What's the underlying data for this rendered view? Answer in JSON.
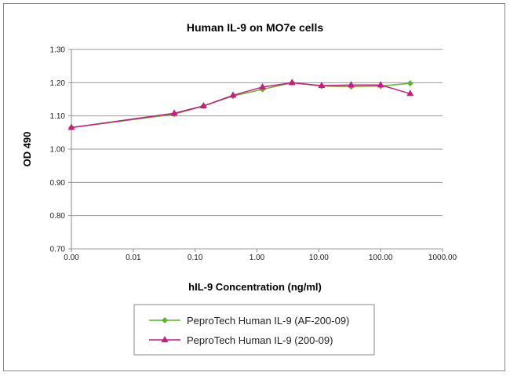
{
  "chart_data": {
    "type": "line",
    "title": "Human IL-9 on MO7e cells",
    "xlabel": "hIL-9 Concentration (ng/ml)",
    "ylabel": "OD 490",
    "x_scale": "log",
    "xlim": [
      0.001,
      1000
    ],
    "ylim": [
      0.7,
      1.3
    ],
    "x_tick_labels": [
      "0.00",
      "0.01",
      "0.10",
      "1.00",
      "10.00",
      "100.00",
      "1000.00"
    ],
    "y_tick_labels": [
      "0.70",
      "0.80",
      "0.90",
      "1.00",
      "1.10",
      "1.20",
      "1.30"
    ],
    "grid": "horizontal",
    "legend_position": "bottom",
    "x": [
      0.001,
      0.046,
      0.137,
      0.41,
      1.23,
      3.7,
      11.1,
      33.3,
      100,
      300
    ],
    "series": [
      {
        "name": "PeproTech Human IL-9 (AF-200-09)",
        "color": "#5bb531",
        "marker": "diamond",
        "values": [
          1.065,
          1.105,
          1.13,
          1.16,
          1.18,
          1.2,
          1.19,
          1.188,
          1.19,
          1.198
        ]
      },
      {
        "name": "PeproTech Human IL-9 (200-09)",
        "color": "#cc1a7f",
        "marker": "triangle",
        "values": [
          1.065,
          1.108,
          1.13,
          1.162,
          1.187,
          1.2,
          1.191,
          1.193,
          1.193,
          1.167
        ]
      }
    ]
  }
}
